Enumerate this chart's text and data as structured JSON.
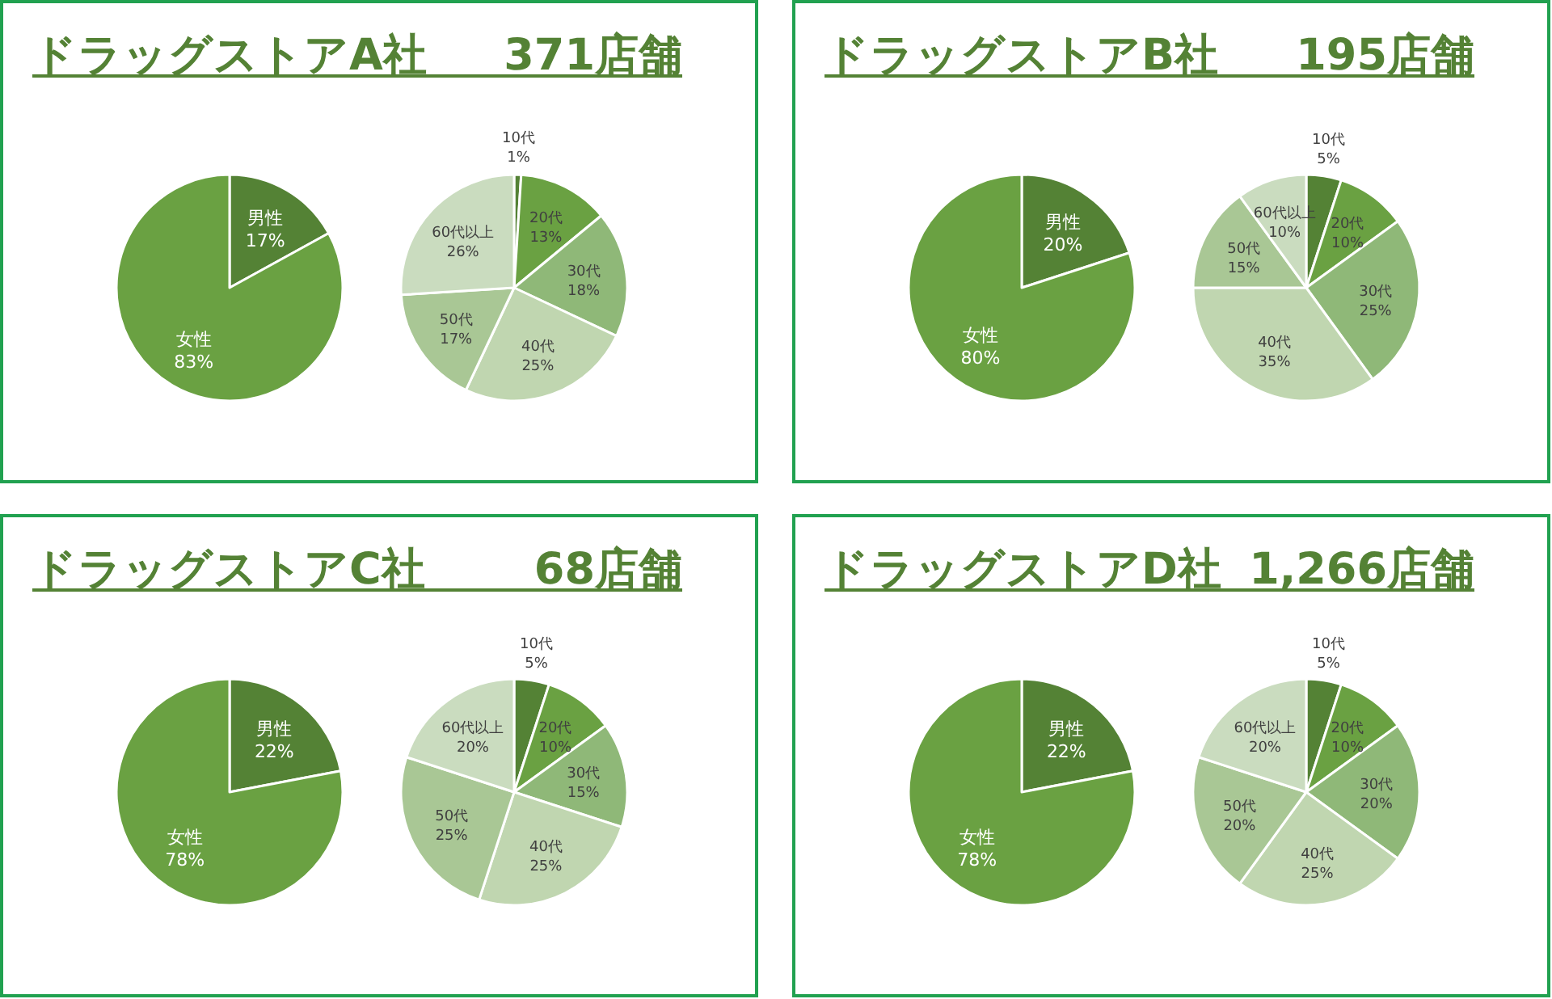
{
  "chart_data": [
    {
      "type": "pie",
      "title": "ドラッグストアA社",
      "subtitle": "371店舗",
      "categories": [
        "男性",
        "女性"
      ],
      "values": [
        17,
        83
      ],
      "value_labels": [
        "17%",
        "83%"
      ],
      "colors": [
        "#548235",
        "#6aa142"
      ]
    },
    {
      "type": "pie",
      "categories": [
        "10代",
        "20代",
        "30代",
        "40代",
        "50代",
        "60代以上"
      ],
      "values": [
        1,
        13,
        18,
        25,
        17,
        26
      ],
      "value_labels": [
        "1%",
        "13%",
        "18%",
        "25%",
        "17%",
        "26%"
      ],
      "colors": [
        "#548235",
        "#6aa142",
        "#8fb878",
        "#c0d6b0",
        "#a9c795",
        "#cadcbf"
      ]
    },
    {
      "type": "pie",
      "title": "ドラッグストアB社",
      "subtitle": "195店舗",
      "categories": [
        "男性",
        "女性"
      ],
      "values": [
        20,
        80
      ],
      "value_labels": [
        "20%",
        "80%"
      ],
      "colors": [
        "#548235",
        "#6aa142"
      ]
    },
    {
      "type": "pie",
      "categories": [
        "10代",
        "20代",
        "30代",
        "40代",
        "50代",
        "60代以上"
      ],
      "values": [
        5,
        10,
        25,
        35,
        15,
        10
      ],
      "value_labels": [
        "5%",
        "10%",
        "25%",
        "35%",
        "15%",
        "10%"
      ],
      "colors": [
        "#548235",
        "#6aa142",
        "#8fb878",
        "#c0d6b0",
        "#a9c795",
        "#cadcbf"
      ]
    },
    {
      "type": "pie",
      "title": "ドラッグストアC社",
      "subtitle": "68店舗",
      "categories": [
        "男性",
        "女性"
      ],
      "values": [
        22,
        78
      ],
      "value_labels": [
        "22%",
        "78%"
      ],
      "colors": [
        "#548235",
        "#6aa142"
      ]
    },
    {
      "type": "pie",
      "categories": [
        "10代",
        "20代",
        "30代",
        "40代",
        "50代",
        "60代以上"
      ],
      "values": [
        5,
        10,
        15,
        25,
        25,
        20
      ],
      "value_labels": [
        "5%",
        "10%",
        "15%",
        "25%",
        "25%",
        "20%"
      ],
      "colors": [
        "#548235",
        "#6aa142",
        "#8fb878",
        "#c0d6b0",
        "#a9c795",
        "#cadcbf"
      ]
    },
    {
      "type": "pie",
      "title": "ドラッグストアD社",
      "subtitle": "1,266店舗",
      "categories": [
        "男性",
        "女性"
      ],
      "values": [
        22,
        78
      ],
      "value_labels": [
        "22%",
        "78%"
      ],
      "colors": [
        "#548235",
        "#6aa142"
      ]
    },
    {
      "type": "pie",
      "categories": [
        "10代",
        "20代",
        "30代",
        "40代",
        "50代",
        "60代以上"
      ],
      "values": [
        5,
        10,
        20,
        25,
        20,
        20
      ],
      "value_labels": [
        "5%",
        "10%",
        "20%",
        "25%",
        "20%",
        "20%"
      ],
      "colors": [
        "#548235",
        "#6aa142",
        "#8fb878",
        "#c0d6b0",
        "#a9c795",
        "#cadcbf"
      ]
    }
  ]
}
